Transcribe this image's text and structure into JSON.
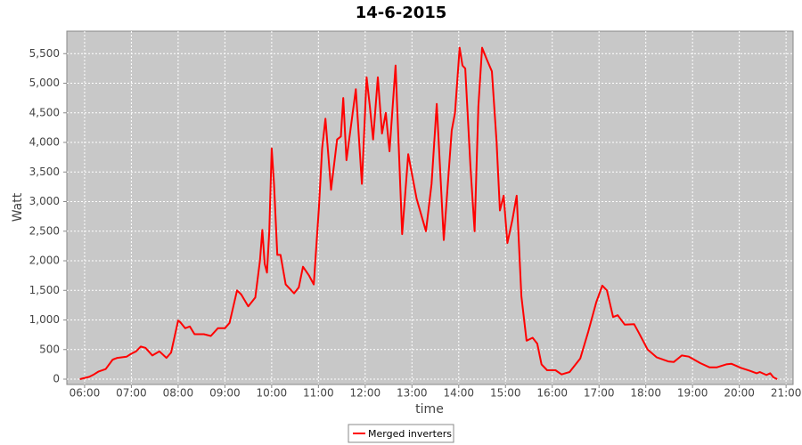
{
  "chart_data": {
    "type": "line",
    "title": "14-6-2015",
    "x_label": "time",
    "y_label": "Watt",
    "x": [
      5.9,
      6.1,
      6.2,
      6.3,
      6.45,
      6.6,
      6.7,
      6.9,
      7.0,
      7.1,
      7.2,
      7.3,
      7.45,
      7.6,
      7.75,
      7.85,
      8.0,
      8.05,
      8.15,
      8.25,
      8.35,
      8.55,
      8.7,
      8.85,
      9.0,
      9.1,
      9.26,
      9.35,
      9.5,
      9.65,
      9.75,
      9.8,
      9.85,
      9.9,
      9.95,
      10.0,
      10.05,
      10.12,
      10.19,
      10.3,
      10.48,
      10.58,
      10.67,
      10.8,
      10.9,
      11.01,
      11.08,
      11.15,
      11.27,
      11.4,
      11.48,
      11.53,
      11.6,
      11.8,
      11.93,
      12.03,
      12.1,
      12.17,
      12.27,
      12.36,
      12.44,
      12.52,
      12.65,
      12.79,
      12.92,
      13.1,
      13.3,
      13.42,
      13.53,
      13.68,
      13.85,
      13.92,
      14.02,
      14.08,
      14.14,
      14.25,
      14.34,
      14.42,
      14.5,
      14.6,
      14.71,
      14.81,
      14.88,
      14.96,
      15.04,
      15.15,
      15.24,
      15.34,
      15.45,
      15.58,
      15.68,
      15.77,
      15.89,
      16.07,
      16.2,
      16.37,
      16.6,
      16.77,
      16.94,
      17.07,
      17.17,
      17.3,
      17.4,
      17.55,
      17.75,
      17.84,
      18.04,
      18.23,
      18.48,
      18.6,
      18.77,
      18.92,
      19.17,
      19.36,
      19.52,
      19.72,
      19.83,
      20.04,
      20.23,
      20.37,
      20.44,
      20.58,
      20.66,
      20.73,
      20.81
    ],
    "series": [
      {
        "name": "Merged inverters",
        "color": "#ff0000",
        "values": [
          0,
          40,
          80,
          130,
          170,
          330,
          360,
          380,
          430,
          470,
          550,
          530,
          400,
          470,
          360,
          450,
          990,
          960,
          860,
          890,
          760,
          760,
          730,
          860,
          860,
          950,
          1500,
          1430,
          1230,
          1380,
          2000,
          2520,
          1950,
          1800,
          2500,
          3900,
          3300,
          2100,
          2100,
          1600,
          1450,
          1550,
          1900,
          1750,
          1600,
          2900,
          3900,
          4400,
          3200,
          4050,
          4100,
          4750,
          3700,
          4900,
          3300,
          5100,
          4600,
          4050,
          5100,
          4150,
          4500,
          3850,
          5300,
          2450,
          3800,
          3050,
          2500,
          3300,
          4650,
          2350,
          4200,
          4500,
          5600,
          5300,
          5250,
          3600,
          2500,
          4600,
          5600,
          5400,
          5200,
          4000,
          2850,
          3100,
          2300,
          2700,
          3100,
          1400,
          650,
          700,
          600,
          250,
          150,
          150,
          80,
          120,
          350,
          800,
          1300,
          1580,
          1500,
          1050,
          1080,
          920,
          930,
          800,
          500,
          370,
          300,
          290,
          400,
          380,
          270,
          200,
          200,
          250,
          260,
          190,
          140,
          100,
          120,
          70,
          100,
          30,
          0
        ]
      }
    ],
    "xlim": [
      5.62,
      21.15
    ],
    "ylim": [
      -90,
      5880
    ],
    "xticks": [
      {
        "value": 6,
        "label": "06:00"
      },
      {
        "value": 7,
        "label": "07:00"
      },
      {
        "value": 8,
        "label": "08:00"
      },
      {
        "value": 9,
        "label": "09:00"
      },
      {
        "value": 10,
        "label": "10:00"
      },
      {
        "value": 11,
        "label": "11:00"
      },
      {
        "value": 12,
        "label": "12:00"
      },
      {
        "value": 13,
        "label": "13:00"
      },
      {
        "value": 14,
        "label": "14:00"
      },
      {
        "value": 15,
        "label": "15:00"
      },
      {
        "value": 16,
        "label": "16:00"
      },
      {
        "value": 17,
        "label": "17:00"
      },
      {
        "value": 18,
        "label": "18:00"
      },
      {
        "value": 19,
        "label": "19:00"
      },
      {
        "value": 20,
        "label": "20:00"
      },
      {
        "value": 21,
        "label": "21:00"
      }
    ],
    "yticks": [
      0,
      500,
      {
        "value": 1000,
        "label": "1,000"
      },
      {
        "value": 1500,
        "label": "1,500"
      },
      {
        "value": 2000,
        "label": "2,000"
      },
      {
        "value": 2500,
        "label": "2,500"
      },
      {
        "value": 3000,
        "label": "3,000"
      },
      {
        "value": 3500,
        "label": "3,500"
      },
      {
        "value": 4000,
        "label": "4,000"
      },
      {
        "value": 4500,
        "label": "4,500"
      },
      {
        "value": 5000,
        "label": "5,000"
      },
      {
        "value": 5500,
        "label": "5,500"
      }
    ],
    "grid": true,
    "legend": "bottom"
  }
}
